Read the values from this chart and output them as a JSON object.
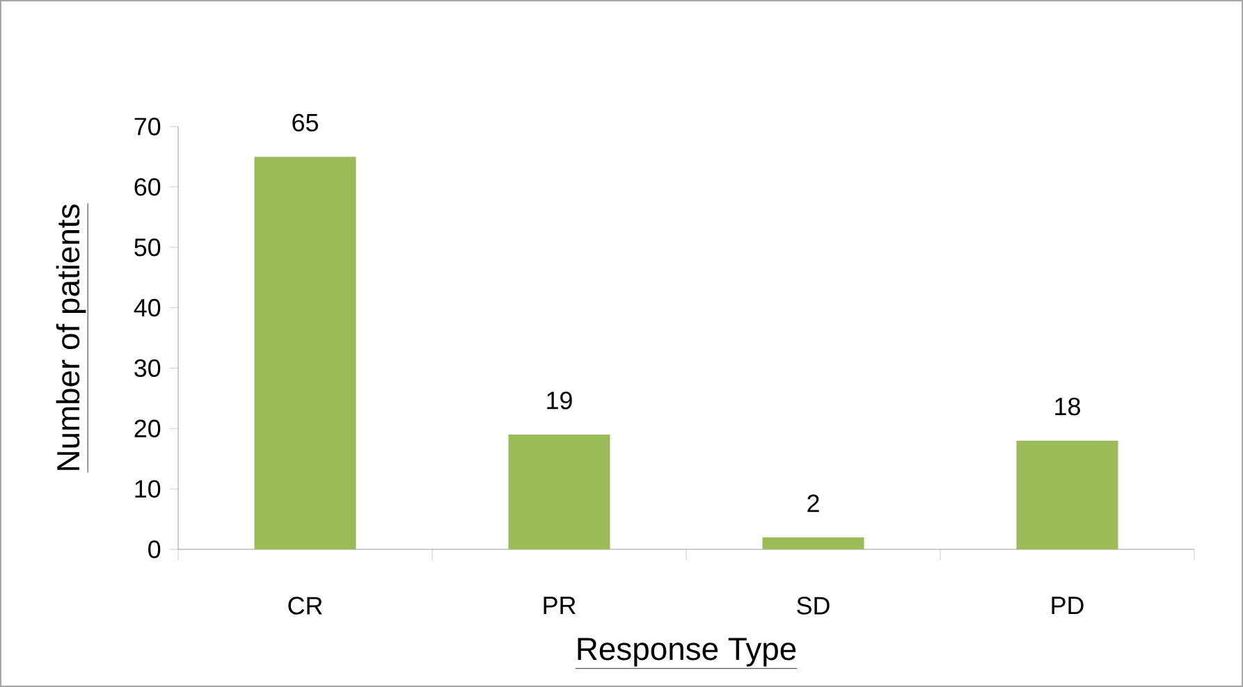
{
  "chart_data": {
    "type": "bar",
    "xlabel": "Response Type",
    "ylabel": "Number of patients",
    "categories": [
      "CR",
      "PR",
      "SD",
      "PD"
    ],
    "values": [
      65,
      19,
      2,
      18
    ],
    "color": "#9bbb59",
    "ylim": [
      0,
      70
    ],
    "yticks": [
      0,
      10,
      20,
      30,
      40,
      50,
      60,
      70
    ],
    "data_labels": true
  }
}
